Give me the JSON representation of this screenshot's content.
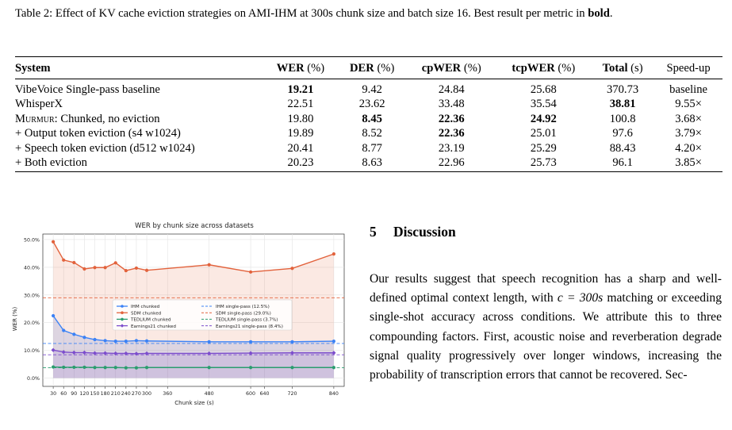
{
  "caption": {
    "lead": "Table 2: Effect of KV cache eviction strategies on AMI-IHM at 300s chunk size and batch size 16. Best result per metric in ",
    "bold_word": "bold",
    "tail": "."
  },
  "table": {
    "headers": {
      "system": "System",
      "wer": "WER",
      "wer_unit": " (%)",
      "der": "DER",
      "der_unit": " (%)",
      "cpwer": "cpWER",
      "cpwer_unit": " (%)",
      "tcpwer": "tcpWER",
      "tcpwer_unit": " (%)",
      "total": "Total",
      "total_unit": " (s)",
      "speedup": "Speed-up"
    },
    "rows": [
      {
        "system": "VibeVoice Single-pass baseline",
        "wer": "19.21",
        "der": "9.42",
        "cpwer": "24.84",
        "tcpwer": "25.68",
        "total": "370.73",
        "speedup": "baseline"
      },
      {
        "system": "WhisperX",
        "wer": "22.51",
        "der": "23.62",
        "cpwer": "33.48",
        "tcpwer": "35.54",
        "total": "38.81",
        "speedup": "9.55×"
      },
      {
        "system_sc": "Murmur",
        "system_rest": ": Chunked, no eviction",
        "wer": "19.80",
        "der": "8.45",
        "cpwer": "22.36",
        "tcpwer": "24.92",
        "total": "100.8",
        "speedup": "3.68×"
      },
      {
        "system": "+ Output token eviction (s4 w1024)",
        "wer": "19.89",
        "der": "8.52",
        "cpwer": "22.36",
        "tcpwer": "25.01",
        "total": "97.6",
        "speedup": "3.79×"
      },
      {
        "system": "+ Speech token eviction (d512 w1024)",
        "wer": "20.41",
        "der": "8.77",
        "cpwer": "23.19",
        "tcpwer": "25.29",
        "total": "88.43",
        "speedup": "4.20×"
      },
      {
        "system": "+ Both eviction",
        "wer": "20.23",
        "der": "8.63",
        "cpwer": "22.96",
        "tcpwer": "25.73",
        "total": "96.1",
        "speedup": "3.85×"
      }
    ]
  },
  "chart_data": {
    "type": "line",
    "title": "WER by chunk size across datasets",
    "xlabel": "Chunk size (s)",
    "ylabel": "WER (%)",
    "x": [
      30,
      60,
      90,
      120,
      150,
      180,
      210,
      240,
      270,
      300,
      480,
      600,
      720,
      840
    ],
    "xticks": [
      "30",
      "60",
      "90",
      "120",
      "150",
      "180",
      "210",
      "240",
      "270",
      "300",
      "360",
      "480",
      "600",
      "640",
      "720",
      "840"
    ],
    "xtick_values": [
      30,
      60,
      90,
      120,
      150,
      180,
      210,
      240,
      270,
      300,
      360,
      480,
      600,
      640,
      720,
      840
    ],
    "yticks": [
      "0.0%",
      "10.0%",
      "20.0%",
      "30.0%",
      "40.0%",
      "50.0%"
    ],
    "ytick_values": [
      0,
      10,
      20,
      30,
      40,
      50
    ],
    "xlim": [
      0,
      870
    ],
    "ylim": [
      -3,
      52
    ],
    "grid": true,
    "legend_position": "center-left",
    "series": [
      {
        "name": "IHM chunked",
        "color": "#3b82f6",
        "marker": "circle",
        "fill": true,
        "x": [
          30,
          60,
          90,
          120,
          150,
          180,
          210,
          240,
          270,
          300,
          480,
          600,
          720,
          840
        ],
        "values": [
          22.5,
          17.2,
          15.8,
          14.7,
          13.9,
          13.5,
          13.3,
          13.3,
          13.5,
          13.4,
          13.1,
          13.1,
          13.1,
          13.3
        ]
      },
      {
        "name": "SDM chunked",
        "color": "#e2623c",
        "marker": "circle",
        "fill": true,
        "x": [
          30,
          60,
          90,
          120,
          150,
          180,
          210,
          240,
          270,
          300,
          480,
          600,
          720,
          840
        ],
        "values": [
          49.2,
          42.6,
          41.7,
          39.4,
          39.9,
          39.9,
          41.6,
          38.8,
          39.7,
          38.9,
          40.9,
          38.3,
          39.6,
          44.8
        ]
      },
      {
        "name": "TEDLIUM chunked",
        "color": "#2a9d6e",
        "marker": "circle",
        "fill": false,
        "x": [
          30,
          60,
          90,
          120,
          150,
          180,
          210,
          240,
          270,
          300,
          480,
          600,
          720,
          840
        ],
        "values": [
          4.0,
          3.9,
          3.9,
          3.9,
          3.8,
          3.8,
          3.8,
          3.7,
          3.7,
          3.8,
          3.8,
          3.8,
          3.8,
          3.8
        ]
      },
      {
        "name": "Earnings21 chunked",
        "color": "#7c4dcc",
        "marker": "diamond",
        "fill": true,
        "x": [
          30,
          60,
          90,
          120,
          150,
          180,
          210,
          240,
          270,
          300,
          480,
          600,
          720,
          840
        ],
        "values": [
          10.1,
          9.4,
          9.2,
          9.2,
          9.0,
          9.0,
          8.9,
          8.9,
          8.8,
          8.9,
          8.9,
          9.0,
          9.1,
          9.1
        ]
      }
    ],
    "reference_lines": [
      {
        "name": "IHM single-pass (12.5%)",
        "value": 12.5,
        "color": "#3b82f6"
      },
      {
        "name": "SDM single-pass (29.0%)",
        "value": 29.0,
        "color": "#e2623c"
      },
      {
        "name": "TEDLIUM single-pass (3.7%)",
        "value": 3.7,
        "color": "#2a9d6e"
      },
      {
        "name": "Earnings21 single-pass (8.4%)",
        "value": 8.4,
        "color": "#7c4dcc"
      }
    ]
  },
  "discussion": {
    "number": "5",
    "title": "Discussion",
    "body_before": "Our results suggest that speech recognition has a sharp and well-defined optimal context length, with ",
    "math": "c = 300s",
    "body_after": " matching or exceeding single-shot accuracy across conditions. We attribute this to three compounding factors. First, acoustic noise and reverberation degrade signal quality progressively over longer windows, increasing the probability of transcription errors that cannot be recovered. Sec-"
  }
}
